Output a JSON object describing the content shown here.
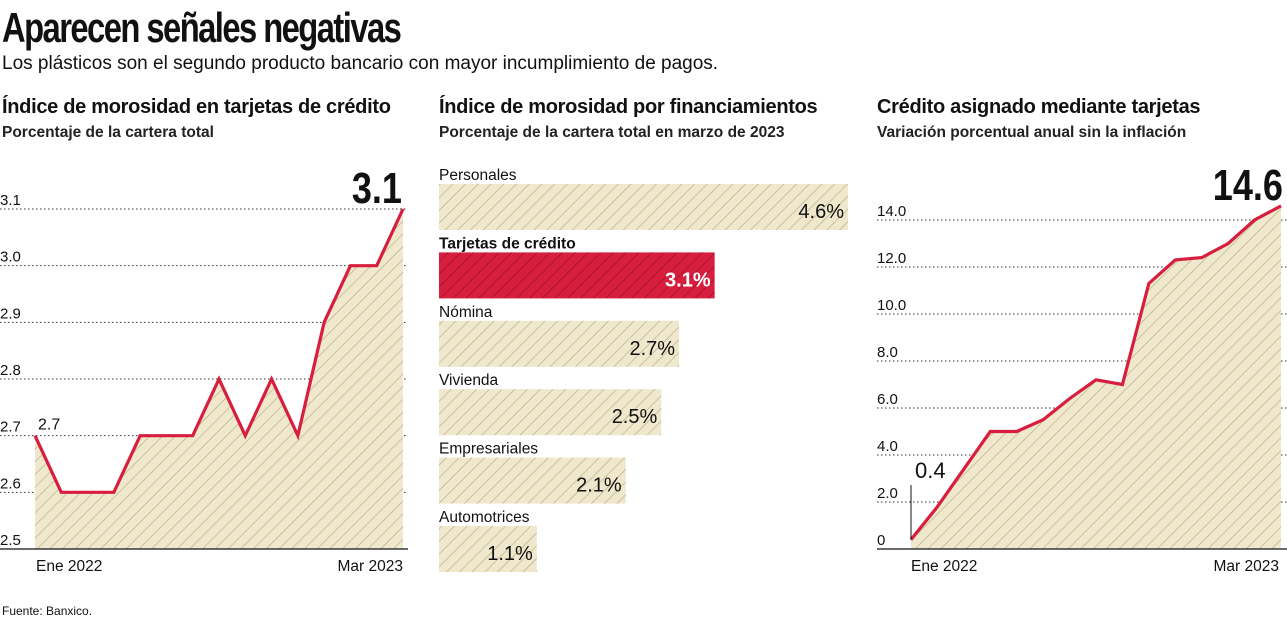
{
  "header": {
    "title": "Aparecen señales negativas",
    "subtitle": "Los plásticos son el segundo producto bancario con mayor incumplimiento de pagos."
  },
  "colors": {
    "accent": "#d81e3f",
    "fill": "#efe8cc",
    "hatch": "#b1a882",
    "grid": "#333333"
  },
  "chart_data": [
    {
      "type": "line",
      "title": "Índice de morosidad en tarjetas de crédito",
      "subtitle": "Porcentaje de la cartera total",
      "ylim": [
        2.5,
        3.1
      ],
      "yticks": [
        "2.5",
        "2.6",
        "2.7",
        "2.8",
        "2.9",
        "3.0",
        "3.1"
      ],
      "x_labels": [
        "Ene 2022",
        "Mar 2023"
      ],
      "values": [
        2.7,
        2.6,
        2.6,
        2.6,
        2.7,
        2.7,
        2.7,
        2.8,
        2.7,
        2.8,
        2.7,
        2.9,
        3.0,
        3.0,
        3.1
      ],
      "start_label": "2.7",
      "end_label": "3.1"
    },
    {
      "type": "bar",
      "orientation": "horizontal",
      "title": "Índice de morosidad por financiamientos",
      "subtitle": "Porcentaje de la cartera total en marzo de 2023",
      "categories": [
        "Personales",
        "Tarjetas de crédito",
        "Nómina",
        "Vivienda",
        "Empresariales",
        "Automotrices"
      ],
      "values": [
        4.6,
        3.1,
        2.7,
        2.5,
        2.1,
        1.1
      ],
      "value_labels": [
        "4.6%",
        "3.1%",
        "2.7%",
        "2.5%",
        "2.1%",
        "1.1%"
      ],
      "highlight": "Tarjetas de crédito",
      "xlim": [
        0,
        4.6
      ]
    },
    {
      "type": "area",
      "title": "Crédito asignado mediante tarjetas",
      "subtitle": "Variación porcentual anual sin la inflación",
      "ylim": [
        0,
        14.6
      ],
      "yticks": [
        "0",
        "2.0",
        "4.0",
        "6.0",
        "8.0",
        "10.0",
        "12.0",
        "14.0"
      ],
      "x_labels": [
        "Ene 2022",
        "Mar 2023"
      ],
      "values": [
        0.4,
        1.8,
        3.4,
        5.0,
        5.0,
        5.5,
        6.4,
        7.2,
        7.0,
        11.3,
        12.3,
        12.4,
        13.0,
        14.0,
        14.6
      ],
      "start_label": "0.4",
      "end_label": "14.6"
    }
  ],
  "footer": {
    "source": "Fuente: Banxico."
  }
}
